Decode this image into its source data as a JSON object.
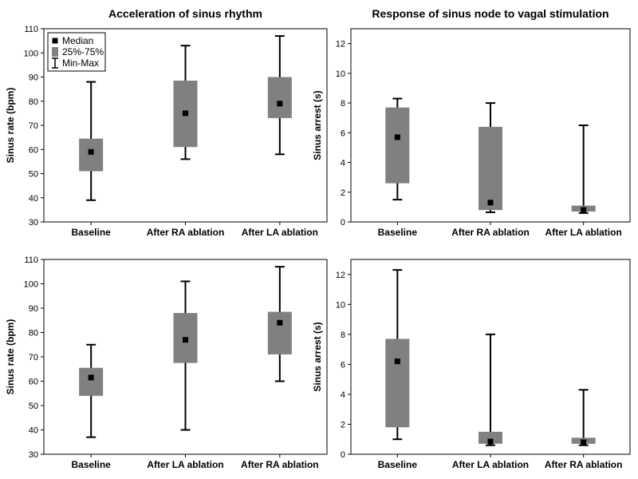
{
  "titles": {
    "left": "Acceleration of sinus rhythm",
    "right": "Response of sinus node to vagal stimulation"
  },
  "legend": {
    "median": "Median",
    "iqr": "25%-75%",
    "range": "Min-Max"
  },
  "colors": {
    "box": "#808080",
    "median": "#000000",
    "whisker": "#000000",
    "axis": "#000000"
  },
  "chart_data": [
    {
      "type": "boxplot",
      "ylabel": "Sinus rate (bpm)",
      "ylim": [
        30,
        110
      ],
      "yticks": [
        30,
        40,
        50,
        60,
        70,
        80,
        90,
        100,
        110
      ],
      "categories": [
        "Baseline",
        "After RA ablation",
        "After LA ablation"
      ],
      "min": [
        39,
        56,
        58
      ],
      "q1": [
        51,
        61,
        73
      ],
      "median": [
        59,
        75,
        79
      ],
      "q3": [
        64.5,
        88.5,
        90
      ],
      "max": [
        88,
        103,
        107
      ],
      "legend": true
    },
    {
      "type": "boxplot",
      "ylabel": "Sinus arrest (s)",
      "ylim": [
        0,
        13
      ],
      "yticks": [
        0,
        2,
        4,
        6,
        8,
        10,
        12
      ],
      "categories": [
        "Baseline",
        "After RA ablation",
        "After LA ablation"
      ],
      "min": [
        1.5,
        0.65,
        0.6
      ],
      "q1": [
        2.6,
        0.8,
        0.7
      ],
      "median": [
        5.7,
        1.3,
        0.8
      ],
      "q3": [
        7.7,
        6.4,
        1.1
      ],
      "max": [
        8.3,
        8.0,
        6.5
      ],
      "legend": false
    },
    {
      "type": "boxplot",
      "ylabel": "Sinus rate (bpm)",
      "ylim": [
        30,
        110
      ],
      "yticks": [
        30,
        40,
        50,
        60,
        70,
        80,
        90,
        100,
        110
      ],
      "categories": [
        "Baseline",
        "After LA ablation",
        "After RA ablation"
      ],
      "min": [
        37,
        40,
        60
      ],
      "q1": [
        54,
        67.5,
        71
      ],
      "median": [
        61.5,
        77,
        84
      ],
      "q3": [
        65.5,
        88,
        88.5
      ],
      "max": [
        75,
        101,
        107
      ],
      "legend": false
    },
    {
      "type": "boxplot",
      "ylabel": "Sinus arrest (s)",
      "ylim": [
        0,
        13
      ],
      "yticks": [
        0,
        2,
        4,
        6,
        8,
        10,
        12
      ],
      "categories": [
        "Baseline",
        "After LA ablation",
        "After RA ablation"
      ],
      "min": [
        1.0,
        0.6,
        0.6
      ],
      "q1": [
        1.8,
        0.7,
        0.7
      ],
      "median": [
        6.2,
        0.85,
        0.8
      ],
      "q3": [
        7.7,
        1.5,
        1.1
      ],
      "max": [
        12.3,
        8.0,
        4.3
      ],
      "legend": false
    }
  ]
}
